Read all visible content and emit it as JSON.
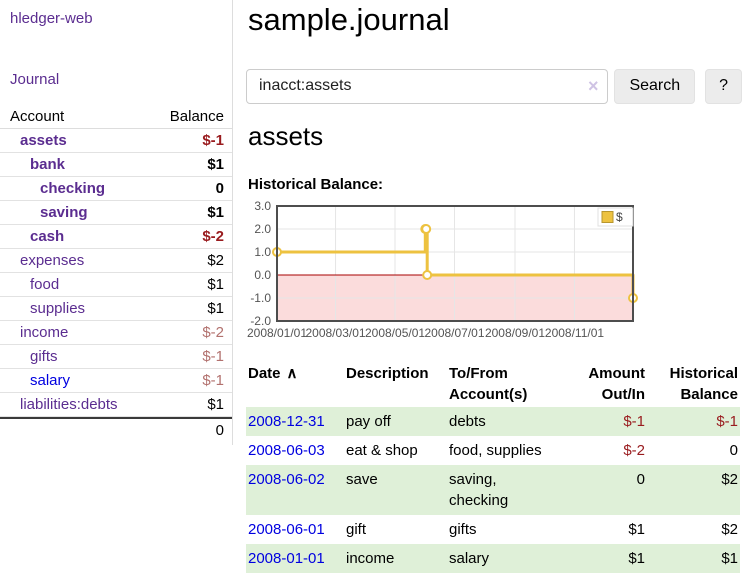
{
  "app": {
    "title": "hledger-web"
  },
  "sidebar": {
    "nav": {
      "journal_label": "Journal"
    },
    "accounts_table": {
      "headers": {
        "account": "Account",
        "balance": "Balance"
      },
      "rows": [
        {
          "name": "assets",
          "balance": "$-1"
        },
        {
          "name": "bank",
          "balance": "$1"
        },
        {
          "name": "checking",
          "balance": "0"
        },
        {
          "name": "saving",
          "balance": "$1"
        },
        {
          "name": "cash",
          "balance": "$-2"
        },
        {
          "name": "expenses",
          "balance": "$2"
        },
        {
          "name": "food",
          "balance": "$1"
        },
        {
          "name": "supplies",
          "balance": "$1"
        },
        {
          "name": "income",
          "balance": "$-2"
        },
        {
          "name": "gifts",
          "balance": "$-1"
        },
        {
          "name": "salary",
          "balance": "$-1"
        },
        {
          "name": "liabilities:debts",
          "balance": "$1"
        }
      ],
      "total": "0"
    }
  },
  "main": {
    "title": "sample.journal",
    "search": {
      "value": "inacct:assets",
      "clear_icon": "×",
      "button_label": "Search",
      "help_label": "?"
    },
    "account_heading": "assets"
  },
  "chart_data": {
    "type": "line",
    "step": true,
    "title": "Historical Balance:",
    "x_type": "date",
    "xrange": [
      "2008-01-01",
      "2008-12-31"
    ],
    "ylim": [
      -2,
      3
    ],
    "yticks": [
      3.0,
      2.0,
      1.0,
      0.0,
      -1.0,
      -2.0
    ],
    "xtick_labels": [
      "2008/01/01",
      "2008/03/01",
      "2008/05/01",
      "2008/07/01",
      "2008/09/01",
      "2008/11/01"
    ],
    "series": [
      {
        "name": "$",
        "color": "#edc240",
        "points": [
          [
            "2008-01-01",
            1
          ],
          [
            "2008-06-01",
            2
          ],
          [
            "2008-06-02",
            2
          ],
          [
            "2008-06-03",
            0
          ],
          [
            "2008-12-31",
            -1
          ]
        ]
      }
    ],
    "legend_position": "ne",
    "grid": true,
    "grid_color": "#e6e6e6",
    "negative_region_color": "#fbdcdc",
    "zero_line_color": "#a70000",
    "axis_color": "#545454",
    "plot_border_color": "#4d4d4d"
  },
  "register": {
    "headers": {
      "date": "Date",
      "sort_icon": "∧",
      "description": "Description",
      "accounts": "To/From Account(s)",
      "amount": "Amount Out/In",
      "balance": "Historical Balance"
    },
    "rows": [
      {
        "date": "2008-12-31",
        "description": "pay off",
        "accounts": "debts",
        "amount": "$-1",
        "balance": "$-1"
      },
      {
        "date": "2008-06-03",
        "description": "eat & shop",
        "accounts": "food, supplies",
        "amount": "$-2",
        "balance": "0"
      },
      {
        "date": "2008-06-02",
        "description": "save",
        "accounts": "saving, checking",
        "amount": "0",
        "balance": "$2"
      },
      {
        "date": "2008-06-01",
        "description": "gift",
        "accounts": "gifts",
        "amount": "$1",
        "balance": "$2"
      },
      {
        "date": "2008-01-01",
        "description": "income",
        "accounts": "salary",
        "amount": "$1",
        "balance": "$1"
      }
    ]
  }
}
